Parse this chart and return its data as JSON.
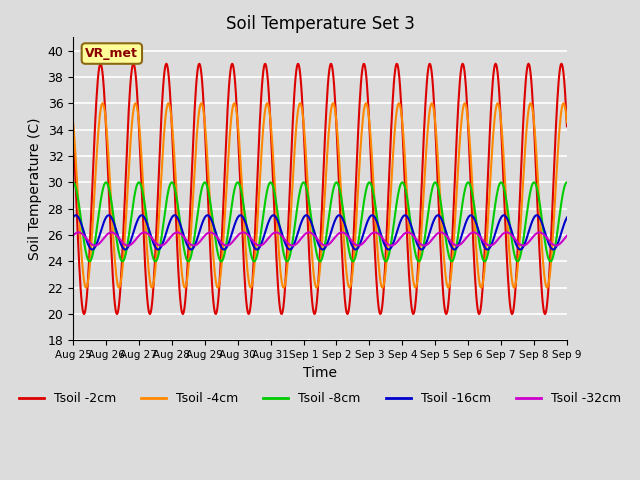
{
  "title": "Soil Temperature Set 3",
  "xlabel": "Time",
  "ylabel": "Soil Temperature (C)",
  "ylim": [
    18,
    41
  ],
  "yticks": [
    18,
    20,
    22,
    24,
    26,
    28,
    30,
    32,
    34,
    36,
    38,
    40
  ],
  "background_color": "#dcdcdc",
  "plot_bg_color": "#dcdcdc",
  "grid_color": "#ffffff",
  "series_names": [
    "Tsoil -2cm",
    "Tsoil -4cm",
    "Tsoil -8cm",
    "Tsoil -16cm",
    "Tsoil -32cm"
  ],
  "series_colors": [
    "#dd0000",
    "#ff8800",
    "#00cc00",
    "#0000cc",
    "#cc00cc"
  ],
  "series_lw": [
    1.5,
    1.5,
    1.5,
    1.5,
    1.5
  ],
  "x_tick_labels": [
    "Aug 25",
    "Aug 26",
    "Aug 27",
    "Aug 28",
    "Aug 29",
    "Aug 30",
    "Aug 31",
    "Sep 1",
    "Sep 2",
    "Sep 3",
    "Sep 4",
    "Sep 5",
    "Sep 6",
    "Sep 7",
    "Sep 8",
    "Sep 9"
  ],
  "annotation_text": "VR_met",
  "n_days": 15,
  "points_per_day": 48
}
